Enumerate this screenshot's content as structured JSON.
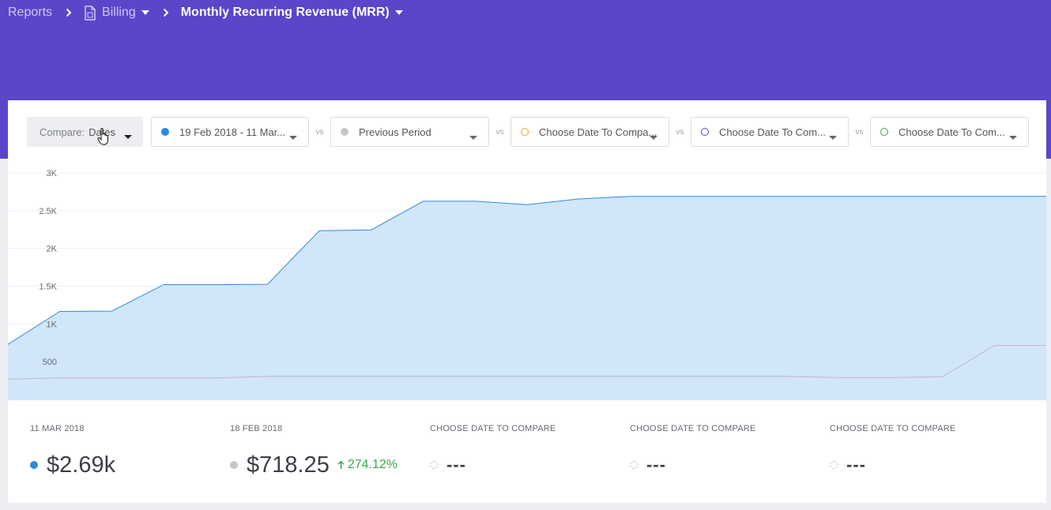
{
  "breadcrumb": {
    "root": "Reports",
    "section": "Billing",
    "current": "Monthly Recurring Revenue (MRR)"
  },
  "controls": {
    "compare_label": "Compare:",
    "compare_value": "Dates",
    "vs_label": "vs",
    "ranges": [
      {
        "label": "19 Feb 2018 - 11 Mar...",
        "color": "#2b8ae2",
        "filled": true
      },
      {
        "label": "Previous Period",
        "color": "#c5c6ca",
        "filled": true
      },
      {
        "label": "Choose Date To Compa...",
        "color": "#f0a020",
        "filled": false
      },
      {
        "label": "Choose Date To Com...",
        "color": "#5b46c9",
        "filled": false
      },
      {
        "label": "Choose Date To Com...",
        "color": "#3aa84c",
        "filled": false
      }
    ]
  },
  "chart_data": {
    "type": "area",
    "title": "",
    "xlabel": "",
    "ylabel": "",
    "ylim": [
      0,
      3000
    ],
    "ytick_labels": [
      "500",
      "1K",
      "1.5K",
      "2K",
      "2.5K",
      "3K"
    ],
    "ytick_values": [
      500,
      1000,
      1500,
      2000,
      2500,
      3000
    ],
    "grid": true,
    "legend": "none",
    "series": [
      {
        "color": "#2b8ae2",
        "fill": "#d2e6fa",
        "values": [
          730,
          1165,
          1170,
          1520,
          1520,
          1525,
          2235,
          2245,
          2625,
          2625,
          2580,
          2655,
          2690,
          2690,
          2690,
          2690,
          2690,
          2690,
          2690,
          2690,
          2690
        ]
      },
      {
        "color": "#b6bac2",
        "fill": "none",
        "values": [
          270,
          285,
          285,
          285,
          285,
          305,
          305,
          305,
          305,
          305,
          305,
          305,
          305,
          305,
          305,
          305,
          290,
          290,
          300,
          715,
          715
        ]
      }
    ]
  },
  "stats": [
    {
      "date": "11 MAR 2018",
      "value": "$2.69k",
      "dot_color": "#2b8ae2",
      "hollow": false,
      "change": ""
    },
    {
      "date": "18 FEB 2018",
      "value": "$718.25",
      "dot_color": "#c5c6ca",
      "hollow": false,
      "change": "274.12%"
    },
    {
      "date": "CHOOSE DATE TO COMPARE",
      "value": "---",
      "hollow": true
    },
    {
      "date": "CHOOSE DATE TO COMPARE",
      "value": "---",
      "hollow": true
    },
    {
      "date": "CHOOSE DATE TO COMPARE",
      "value": "---",
      "hollow": true
    }
  ],
  "icons": {
    "section_icon": "document-icon",
    "separator_icon": "chevron-right-icon",
    "dropdown_icon": "caret-down-icon",
    "change_icon": "arrow-up-icon",
    "pointer_icon": "hand-pointer-icon"
  }
}
